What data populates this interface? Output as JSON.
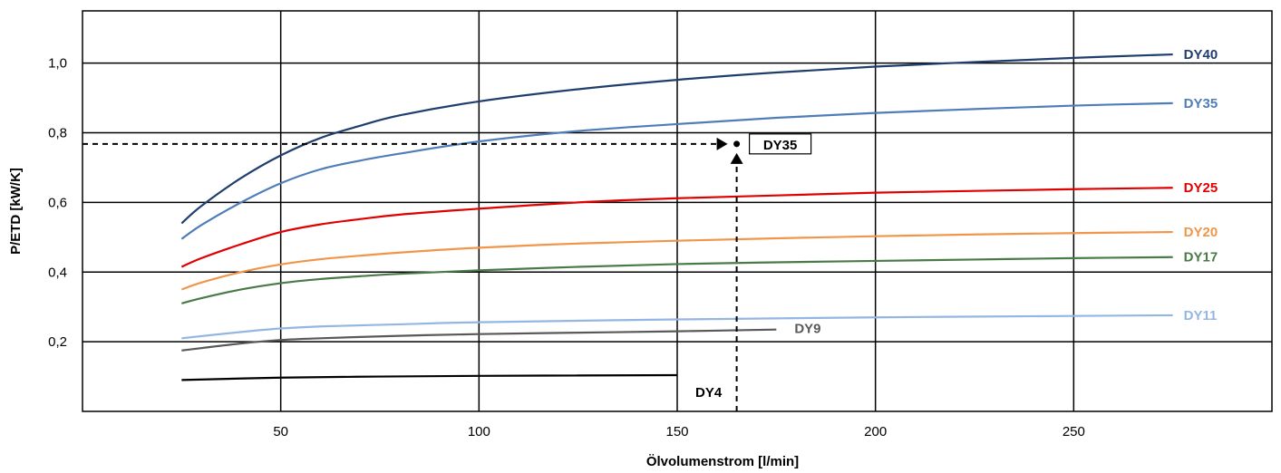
{
  "chart_data": {
    "type": "line",
    "xlabel": "Ölvolumenstrom [l/min]",
    "ylabel": "P/ETD [kW/K]",
    "xlim": [
      0,
      300
    ],
    "ylim": [
      0,
      1.15
    ],
    "x_ticks": [
      {
        "value": 50,
        "label": "50"
      },
      {
        "value": 100,
        "label": "100"
      },
      {
        "value": 150,
        "label": "150"
      },
      {
        "value": 200,
        "label": "200"
      },
      {
        "value": 250,
        "label": "250"
      }
    ],
    "y_ticks": [
      {
        "value": 0.2,
        "label": "0,2"
      },
      {
        "value": 0.4,
        "label": "0,4"
      },
      {
        "value": 0.6,
        "label": "0,6"
      },
      {
        "value": 0.8,
        "label": "0,8"
      },
      {
        "value": 1.0,
        "label": "1,0"
      }
    ],
    "grid": true,
    "series": [
      {
        "name": "DY40",
        "color": "#1f3e6e",
        "x": [
          25,
          30,
          40,
          50,
          60,
          70,
          80,
          100,
          125,
          150,
          175,
          200,
          225,
          250,
          275
        ],
        "y": [
          0.54,
          0.59,
          0.67,
          0.735,
          0.785,
          0.82,
          0.85,
          0.89,
          0.925,
          0.952,
          0.973,
          0.99,
          1.003,
          1.015,
          1.025
        ]
      },
      {
        "name": "DY35",
        "color": "#4f7db8",
        "x": [
          25,
          30,
          40,
          50,
          60,
          70,
          80,
          100,
          125,
          150,
          175,
          200,
          225,
          250,
          275
        ],
        "y": [
          0.495,
          0.535,
          0.6,
          0.655,
          0.695,
          0.72,
          0.74,
          0.775,
          0.805,
          0.825,
          0.843,
          0.857,
          0.868,
          0.878,
          0.885
        ]
      },
      {
        "name": "DY25",
        "color": "#e00000",
        "x": [
          25,
          30,
          40,
          50,
          60,
          70,
          80,
          100,
          125,
          150,
          175,
          200,
          225,
          250,
          275
        ],
        "y": [
          0.415,
          0.44,
          0.48,
          0.515,
          0.537,
          0.552,
          0.565,
          0.582,
          0.6,
          0.612,
          0.62,
          0.628,
          0.633,
          0.638,
          0.642
        ]
      },
      {
        "name": "DY20",
        "color": "#f0954a",
        "x": [
          25,
          30,
          40,
          50,
          60,
          70,
          80,
          100,
          125,
          150,
          175,
          200,
          225,
          250,
          275
        ],
        "y": [
          0.35,
          0.37,
          0.4,
          0.422,
          0.437,
          0.447,
          0.456,
          0.47,
          0.482,
          0.49,
          0.497,
          0.503,
          0.508,
          0.512,
          0.515
        ]
      },
      {
        "name": "DY17",
        "color": "#4a7a46",
        "x": [
          25,
          30,
          40,
          50,
          60,
          70,
          80,
          100,
          125,
          150,
          175,
          200,
          225,
          250,
          275
        ],
        "y": [
          0.31,
          0.325,
          0.35,
          0.368,
          0.38,
          0.388,
          0.395,
          0.405,
          0.415,
          0.423,
          0.428,
          0.432,
          0.436,
          0.44,
          0.443
        ]
      },
      {
        "name": "DY11",
        "color": "#94b6e2",
        "x": [
          25,
          40,
          50,
          60,
          80,
          100,
          150,
          200,
          250,
          275
        ],
        "y": [
          0.21,
          0.228,
          0.238,
          0.244,
          0.25,
          0.256,
          0.264,
          0.27,
          0.274,
          0.276
        ]
      },
      {
        "name": "DY9",
        "color": "#595959",
        "x": [
          25,
          40,
          50,
          60,
          80,
          100,
          125,
          150,
          175
        ],
        "y": [
          0.175,
          0.195,
          0.205,
          0.21,
          0.217,
          0.222,
          0.226,
          0.23,
          0.235
        ]
      },
      {
        "name": "DY4",
        "color": "#000000",
        "x": [
          25,
          50,
          75,
          100,
          125,
          150
        ],
        "y": [
          0.09,
          0.097,
          0.1,
          0.102,
          0.103,
          0.104
        ]
      }
    ],
    "annotation": {
      "label": "DY35",
      "point": {
        "x": 165,
        "y": 0.768
      }
    }
  }
}
